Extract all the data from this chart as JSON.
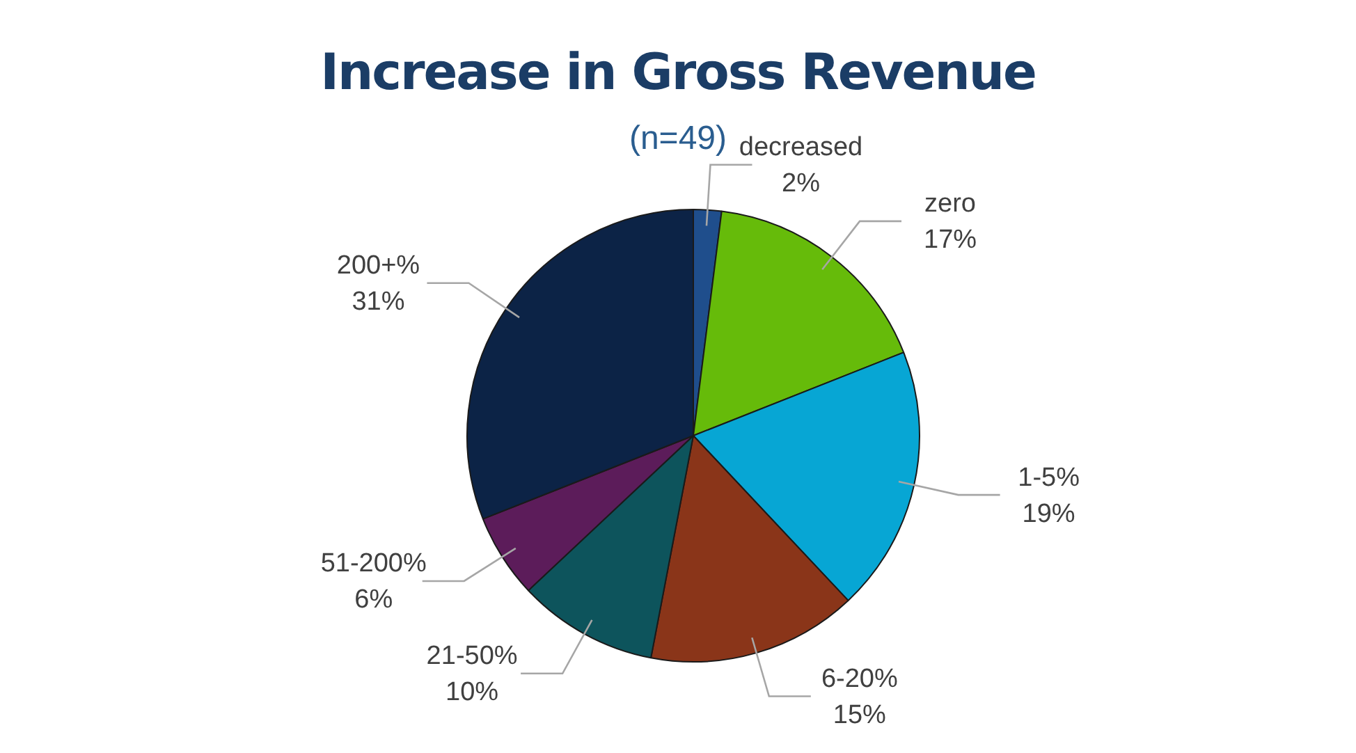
{
  "chart_data": {
    "type": "pie",
    "title": "Increase in Gross Revenue",
    "subtitle": "(n=49)",
    "categories": [
      "decreased",
      "zero",
      "1-5%",
      "6-20%",
      "21-50%",
      "51-200%",
      "200+%"
    ],
    "values": [
      2,
      17,
      19,
      15,
      10,
      6,
      31
    ],
    "value_labels": [
      "2%",
      "17%",
      "19%",
      "15%",
      "10%",
      "6%",
      "31%"
    ],
    "colors": [
      "#1f4e8c",
      "#66bb0a",
      "#07a6d4",
      "#8a3519",
      "#0d545c",
      "#5c1c5a",
      "#0c2346"
    ],
    "legend": false
  }
}
